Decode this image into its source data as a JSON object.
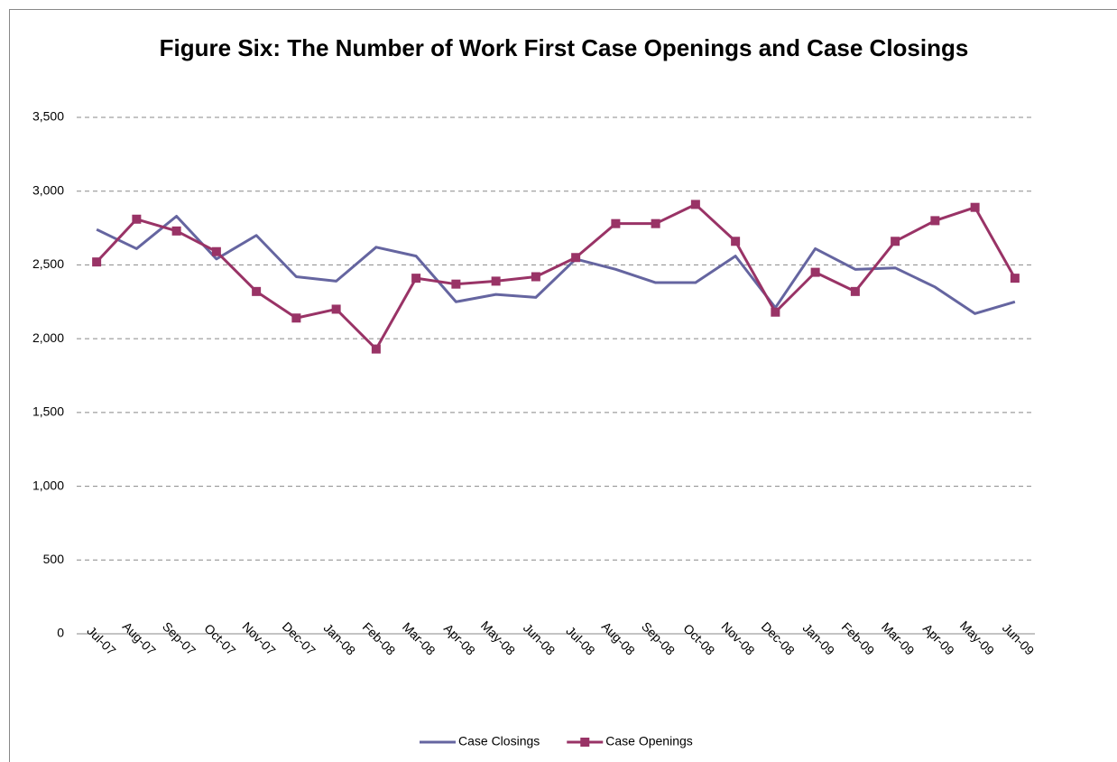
{
  "chart_data": {
    "type": "line",
    "title": "Figure Six: The Number of Work First Case Openings and Case Closings",
    "categories": [
      "Jul-07",
      "Aug-07",
      "Sep-07",
      "Oct-07",
      "Nov-07",
      "Dec-07",
      "Jan-08",
      "Feb-08",
      "Mar-08",
      "Apr-08",
      "May-08",
      "Jun-08",
      "Jul-08",
      "Aug-08",
      "Sep-08",
      "Oct-08",
      "Nov-08",
      "Dec-08",
      "Jan-09",
      "Feb-09",
      "Mar-09",
      "Apr-09",
      "May-09",
      "Jun-09"
    ],
    "series": [
      {
        "name": "Case Closings",
        "color": "#6565a0",
        "marker": "none",
        "values": [
          2740,
          2610,
          2830,
          2540,
          2700,
          2420,
          2390,
          2620,
          2560,
          2250,
          2300,
          2280,
          2540,
          2470,
          2380,
          2380,
          2560,
          2210,
          2610,
          2470,
          2480,
          2350,
          2170,
          2250
        ]
      },
      {
        "name": "Case Openings",
        "color": "#993366",
        "marker": "square",
        "values": [
          2520,
          2810,
          2730,
          2590,
          2320,
          2140,
          2200,
          1930,
          2410,
          2370,
          2390,
          2420,
          2550,
          2780,
          2780,
          2910,
          2660,
          2180,
          2450,
          2320,
          2660,
          2800,
          2890,
          2410
        ]
      }
    ],
    "ylim": [
      0,
      3500
    ],
    "yticks": [
      0,
      500,
      {
        "value": 1000,
        "label": "1,000"
      },
      {
        "value": 1500,
        "label": "1,500"
      },
      {
        "value": 2000,
        "label": "2,000"
      },
      {
        "value": 2500,
        "label": "2,500"
      },
      {
        "value": 3000,
        "label": "3,000"
      },
      {
        "value": 3500,
        "label": "3,500"
      }
    ],
    "grid": true,
    "legend": "bottom"
  }
}
